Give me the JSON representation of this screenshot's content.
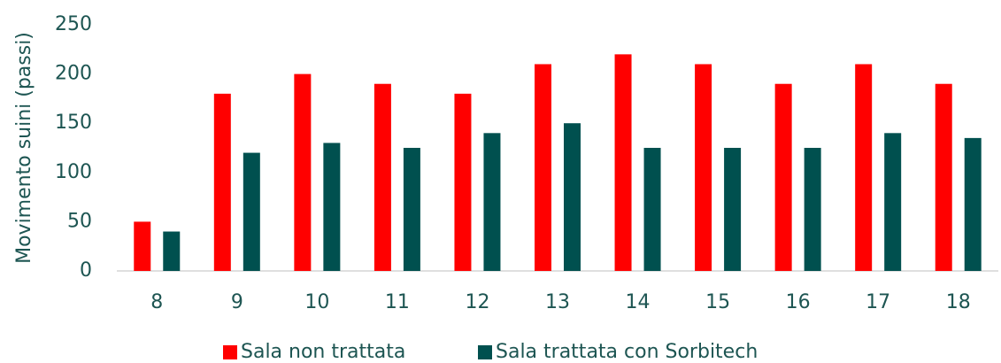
{
  "chart_data": {
    "type": "bar",
    "y_label": "Movimento suini (passi)",
    "categories": [
      "8",
      "9",
      "10",
      "11",
      "12",
      "13",
      "14",
      "15",
      "16",
      "17",
      "18"
    ],
    "series": [
      {
        "name": "Sala non trattata",
        "color": "#ff0000",
        "values": [
          50,
          180,
          200,
          190,
          180,
          210,
          220,
          210,
          190,
          210,
          190
        ]
      },
      {
        "name": "Sala trattata con Sorbitech",
        "color": "#00504f",
        "values": [
          40,
          120,
          130,
          125,
          140,
          150,
          125,
          125,
          125,
          140,
          135
        ]
      }
    ],
    "ylim": [
      0,
      250
    ],
    "yticks": [
      0,
      50,
      100,
      150,
      200,
      250
    ],
    "grid": false,
    "legend": "bottom"
  }
}
